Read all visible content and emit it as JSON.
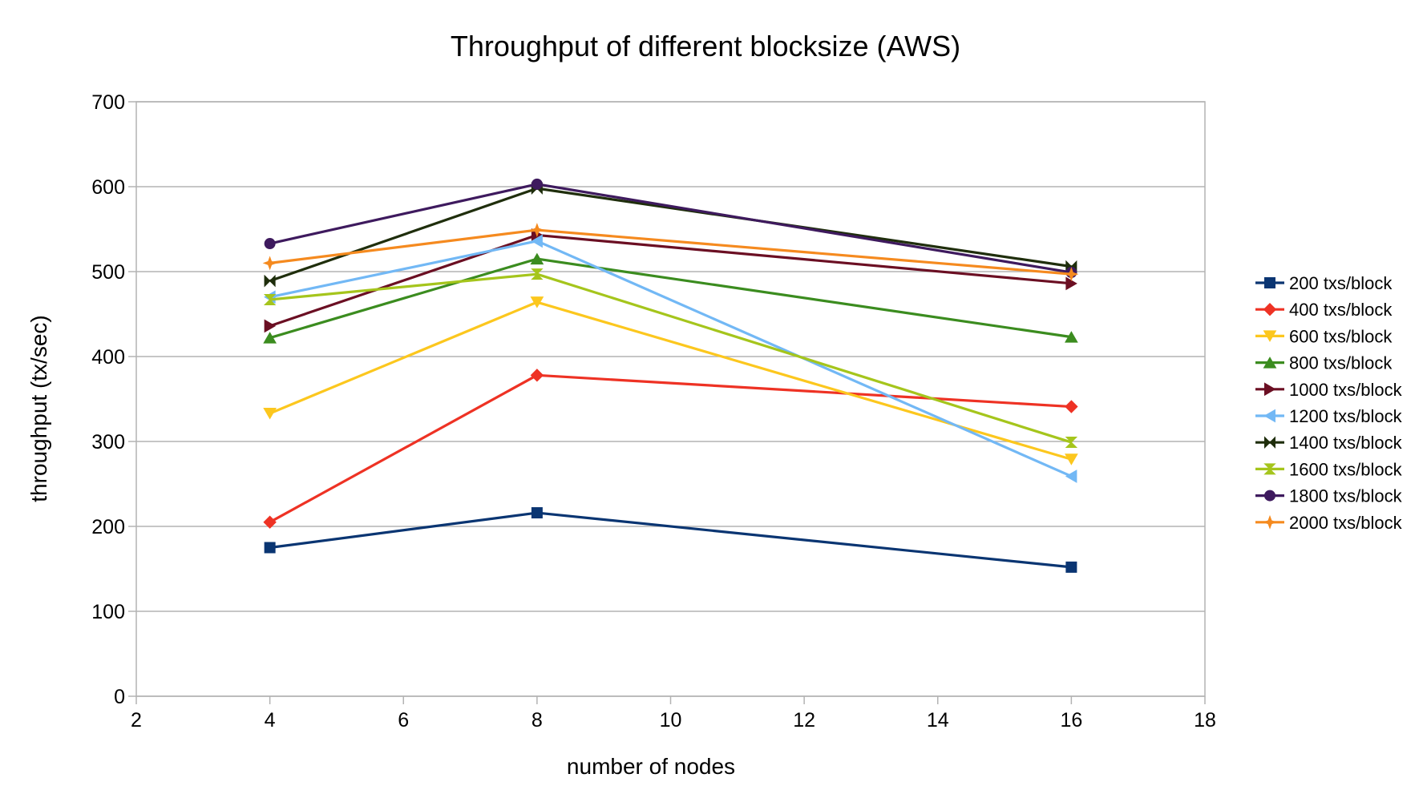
{
  "chart_data": {
    "type": "line",
    "title": "Throughput of different blocksize (AWS)",
    "xlabel": "number of nodes",
    "ylabel": "throughput (tx/sec)",
    "xlim": [
      2,
      18
    ],
    "ylim": [
      0,
      700
    ],
    "xticks": [
      2,
      4,
      6,
      8,
      10,
      12,
      14,
      16,
      18
    ],
    "yticks": [
      0,
      100,
      200,
      300,
      400,
      500,
      600,
      700
    ],
    "grid": "horizontal",
    "legend_position": "right",
    "x": [
      4,
      8,
      16
    ],
    "series": [
      {
        "name": "200 txs/block",
        "values": [
          175,
          216,
          152
        ],
        "color": "#0a3572",
        "marker": "square"
      },
      {
        "name": "400 txs/block",
        "values": [
          205,
          378,
          341
        ],
        "color": "#ee3224",
        "marker": "diamond"
      },
      {
        "name": "600 txs/block",
        "values": [
          333,
          464,
          279
        ],
        "color": "#fcc71e",
        "marker": "triangle-down"
      },
      {
        "name": "800 txs/block",
        "values": [
          422,
          515,
          423
        ],
        "color": "#3b8c1f",
        "marker": "triangle-up"
      },
      {
        "name": "1000 txs/block",
        "values": [
          436,
          543,
          486
        ],
        "color": "#6b0f23",
        "marker": "triangle-right"
      },
      {
        "name": "1200 txs/block",
        "values": [
          470,
          536,
          259
        ],
        "color": "#72b8f5",
        "marker": "triangle-left"
      },
      {
        "name": "1400 txs/block",
        "values": [
          489,
          598,
          506
        ],
        "color": "#1f2e0c",
        "marker": "bowtie"
      },
      {
        "name": "1600 txs/block",
        "values": [
          467,
          497,
          299
        ],
        "color": "#a5c51c",
        "marker": "hourglass"
      },
      {
        "name": "1800 txs/block",
        "values": [
          533,
          603,
          499
        ],
        "color": "#3e1a5e",
        "marker": "circle"
      },
      {
        "name": "2000 txs/block",
        "values": [
          510,
          549,
          497
        ],
        "color": "#f58a1f",
        "marker": "star"
      }
    ]
  }
}
